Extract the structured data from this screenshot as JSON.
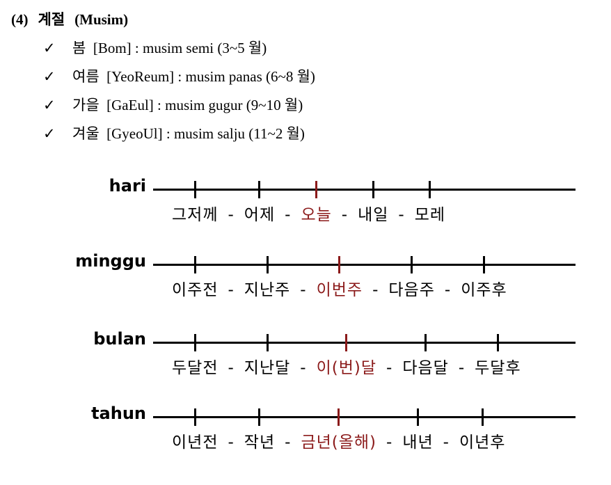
{
  "heading": {
    "number": "(4)",
    "title": "계절",
    "subtitle": "(Musim)"
  },
  "seasons": [
    "봄  [Bom] : musim semi (3~5 월)",
    "여름  [YeoReum] : musim panas (6~8 월)",
    "가을  [GaEul] : musim gugur (9~10 월)",
    "겨울  [GyeoUl] : musim salju (11~2 월)"
  ],
  "separator": "-",
  "current_color": "#8b1a1a",
  "timelines": [
    {
      "label": "hari",
      "words": [
        "그저께",
        "어제",
        "오늘",
        "내일",
        "모레"
      ],
      "current": 2
    },
    {
      "label": "minggu",
      "words": [
        "이주전",
        "지난주",
        "이번주",
        "다음주",
        "이주후"
      ],
      "current": 2
    },
    {
      "label": "bulan",
      "words": [
        "두달전",
        "지난달",
        "이(번)달",
        "다음달",
        "두달후"
      ],
      "current": 2
    },
    {
      "label": "tahun",
      "words": [
        "이년전",
        "작년",
        "금년(올해)",
        "내년",
        "이년후"
      ],
      "current": 2
    }
  ]
}
